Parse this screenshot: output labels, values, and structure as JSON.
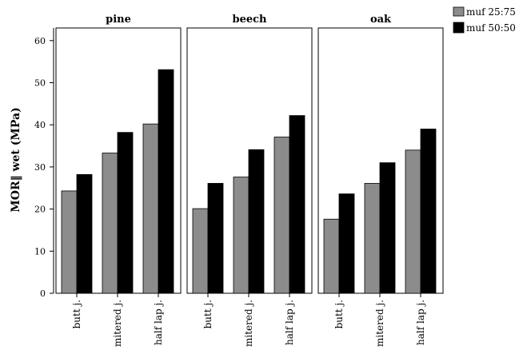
{
  "chart_data": {
    "type": "bar",
    "ylabel": "MOR‖ wet (MPa)",
    "ylim": [
      0,
      63
    ],
    "yticks": [
      0,
      10,
      20,
      30,
      40,
      50,
      60
    ],
    "grid": false,
    "legend_position": "top-right",
    "categories": [
      "butt j.",
      "mitered j.",
      "half lap j."
    ],
    "series": [
      {
        "name": "muf 25:75",
        "color": "#8c8c8c"
      },
      {
        "name": "muf 50:50",
        "color": "#000000"
      }
    ],
    "panels": [
      {
        "title": "pine",
        "values": [
          [
            24.3,
            28.2
          ],
          [
            33.3,
            38.2
          ],
          [
            40.2,
            53.1
          ]
        ]
      },
      {
        "title": "beech",
        "values": [
          [
            20.1,
            26.1
          ],
          [
            27.6,
            34.1
          ],
          [
            37.1,
            42.2
          ]
        ]
      },
      {
        "title": "oak",
        "values": [
          [
            17.6,
            23.6
          ],
          [
            26.1,
            31.0
          ],
          [
            34.0,
            39.0
          ]
        ]
      }
    ]
  }
}
